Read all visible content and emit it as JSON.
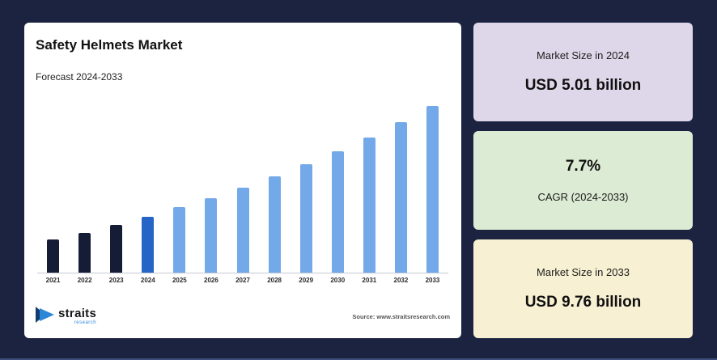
{
  "chart_card": {
    "title": "Safety Helmets Market",
    "subtitle": "Forecast 2024-2033",
    "source": "Source: www.straitsresearch.com",
    "logo": {
      "name": "straits",
      "sub": "research"
    }
  },
  "stats": [
    {
      "label": "Market Size in 2024",
      "value": "USD 5.01 billion",
      "bg": "#ded7e9"
    },
    {
      "value": "7.7%",
      "label": "CAGR (2024-2033)",
      "bg": "#dcebd3"
    },
    {
      "label": "Market Size in 2033",
      "value": "USD 9.76 billion",
      "bg": "#f7f0d2"
    }
  ],
  "chart_data": {
    "type": "bar",
    "title": "Safety Helmets Market",
    "subtitle": "Forecast 2024-2033",
    "xlabel": "",
    "ylabel": "",
    "unit": "USD billion",
    "categories": [
      "2021",
      "2022",
      "2023",
      "2024",
      "2025",
      "2026",
      "2027",
      "2028",
      "2029",
      "2030",
      "2031",
      "2032",
      "2033"
    ],
    "values": [
      4.01,
      4.32,
      4.65,
      5.01,
      5.4,
      5.81,
      6.26,
      6.74,
      7.26,
      7.82,
      8.42,
      9.07,
      9.76
    ],
    "bar_colors": [
      "#151c36",
      "#151c36",
      "#151c36",
      "#2465c6",
      "#73a9e8",
      "#73a9e8",
      "#73a9e8",
      "#73a9e8",
      "#73a9e8",
      "#73a9e8",
      "#73a9e8",
      "#73a9e8",
      "#73a9e8"
    ],
    "color_legend": {
      "historical": "#151c36",
      "base_year_2024": "#2465c6",
      "forecast": "#73a9e8"
    },
    "baseline_value": 2.6,
    "axis_max": 9.76,
    "grid": false,
    "legend": false,
    "known_points": {
      "2024": "USD 5.01 billion",
      "2033": "USD 9.76 billion",
      "cagr": "7.7%"
    }
  },
  "colors": {
    "page_bg": "#1c2340",
    "card_bg": "#ffffff"
  }
}
